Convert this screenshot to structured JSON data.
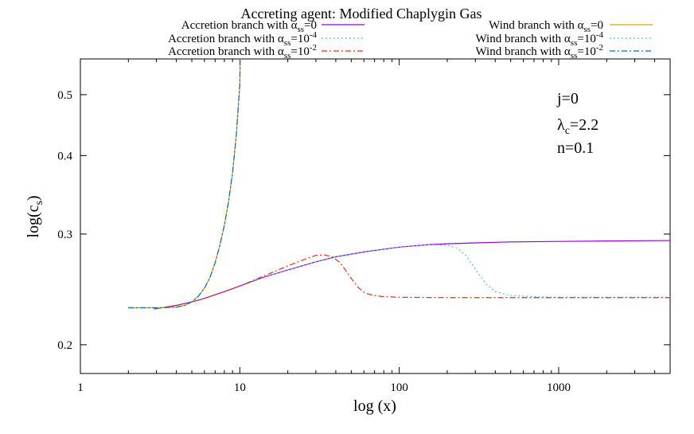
{
  "chart_data": {
    "type": "line",
    "title": "Accreting agent: Modified Chaplygin Gas",
    "xlabel": "log (x)",
    "ylabel_base": "log(c",
    "ylabel_sub": "s",
    "ylabel_close": ")",
    "x_scale": "log",
    "y_scale": "log",
    "xlim": [
      1,
      5000
    ],
    "ylim": [
      0.18,
      0.57
    ],
    "x_ticks": [
      {
        "v": 1,
        "label": "1"
      },
      {
        "v": 10,
        "label": "10"
      },
      {
        "v": 100,
        "label": "100"
      },
      {
        "v": 1000,
        "label": "1000"
      }
    ],
    "y_ticks": [
      {
        "v": 0.2,
        "label": "0.2"
      },
      {
        "v": 0.3,
        "label": "0.3"
      },
      {
        "v": 0.4,
        "label": "0.4"
      },
      {
        "v": 0.5,
        "label": "0.5"
      }
    ],
    "grid": false,
    "legend_placement": "top",
    "annotations": [
      {
        "base": "j=0",
        "sub": ""
      },
      {
        "base": "λ",
        "sub": "c",
        "tail": "=2.2"
      },
      {
        "base": "n=0.1",
        "sub": ""
      }
    ],
    "series": [
      {
        "name": "Accretion branch with α_ss=0",
        "label": {
          "prefix": "Accretion branch with α",
          "sub": "ss",
          "suffix": "=0",
          "sup": ""
        },
        "color": "#9400d3",
        "dash": "",
        "x": [
          2.9,
          4,
          5,
          6,
          8,
          10,
          14,
          20,
          30,
          40,
          60,
          100,
          150,
          200,
          300,
          500,
          1000,
          2000,
          5000
        ],
        "y": [
          0.228,
          0.231,
          0.234,
          0.237,
          0.243,
          0.248,
          0.256,
          0.263,
          0.271,
          0.276,
          0.281,
          0.286,
          0.2885,
          0.2895,
          0.2905,
          0.2915,
          0.292,
          0.2925,
          0.293
        ]
      },
      {
        "name": "Accretion branch with α_ss=10^-4",
        "label": {
          "prefix": "Accretion branch with α",
          "sub": "ss",
          "suffix": "=10",
          "sup": "-4"
        },
        "color": "#56b4e9",
        "dash": "2,3",
        "x": [
          2.9,
          4,
          5,
          6,
          8,
          10,
          14,
          20,
          30,
          40,
          60,
          100,
          150,
          200,
          230,
          260,
          300,
          350,
          400,
          500,
          700,
          1000,
          2000,
          5000
        ],
        "y": [
          0.228,
          0.231,
          0.234,
          0.237,
          0.243,
          0.248,
          0.256,
          0.263,
          0.271,
          0.276,
          0.281,
          0.286,
          0.2885,
          0.288,
          0.285,
          0.278,
          0.264,
          0.25,
          0.243,
          0.2395,
          0.2385,
          0.238,
          0.238,
          0.238
        ]
      },
      {
        "name": "Accretion branch with α_ss=10^-2",
        "label": {
          "prefix": "Accretion branch with α",
          "sub": "ss",
          "suffix": "=10",
          "sup": "-2"
        },
        "color": "#d7301f",
        "dash": "7,3,2,3",
        "x": [
          2.9,
          4,
          5,
          6,
          8,
          10,
          14,
          20,
          26,
          30,
          34,
          38,
          42,
          46,
          50,
          55,
          60,
          65,
          70,
          80,
          100,
          150,
          200,
          500,
          1000,
          2000,
          5000
        ],
        "y": [
          0.228,
          0.231,
          0.234,
          0.237,
          0.243,
          0.248,
          0.257,
          0.267,
          0.274,
          0.2775,
          0.278,
          0.276,
          0.271,
          0.263,
          0.255,
          0.247,
          0.2425,
          0.2405,
          0.2395,
          0.2385,
          0.238,
          0.2378,
          0.2377,
          0.2377,
          0.2377,
          0.2377,
          0.2377
        ]
      },
      {
        "name": "Wind branch with α_ss=0",
        "label": {
          "prefix": "Wind branch with α",
          "sub": "ss",
          "suffix": "=0",
          "sup": ""
        },
        "color": "#e69f00",
        "dash": "",
        "x": [
          2,
          3,
          4,
          4.5,
          5,
          5.5,
          6,
          6.5,
          7,
          7.5,
          8,
          8.5,
          9,
          9.5,
          10,
          10.05
        ],
        "y": [
          0.229,
          0.229,
          0.2295,
          0.231,
          0.234,
          0.239,
          0.246,
          0.256,
          0.27,
          0.288,
          0.31,
          0.338,
          0.375,
          0.43,
          0.52,
          0.57
        ]
      },
      {
        "name": "Wind branch with α_ss=10^-4",
        "label": {
          "prefix": "Wind branch with α",
          "sub": "ss",
          "suffix": "=10",
          "sup": "-4"
        },
        "color": "#56b4e9",
        "dash": "2,3",
        "x": [
          2,
          3,
          4,
          4.5,
          5,
          5.5,
          6,
          6.5,
          7,
          7.5,
          8,
          8.5,
          9,
          9.5,
          10,
          10.05
        ],
        "y": [
          0.229,
          0.229,
          0.2295,
          0.231,
          0.234,
          0.239,
          0.246,
          0.256,
          0.27,
          0.288,
          0.31,
          0.338,
          0.375,
          0.43,
          0.52,
          0.57
        ]
      },
      {
        "name": "Wind branch with α_ss=10^-2",
        "label": {
          "prefix": "Wind branch with α",
          "sub": "ss",
          "suffix": "=10",
          "sup": "-2"
        },
        "color": "#0072b2",
        "dash": "7,3,2,3",
        "x": [
          2,
          3,
          4,
          4.5,
          5,
          5.5,
          6,
          6.5,
          7,
          7.5,
          8,
          8.5,
          9,
          9.5,
          10,
          10.05
        ],
        "y": [
          0.229,
          0.229,
          0.2295,
          0.231,
          0.234,
          0.239,
          0.246,
          0.256,
          0.27,
          0.288,
          0.31,
          0.338,
          0.375,
          0.43,
          0.52,
          0.57
        ]
      }
    ]
  }
}
